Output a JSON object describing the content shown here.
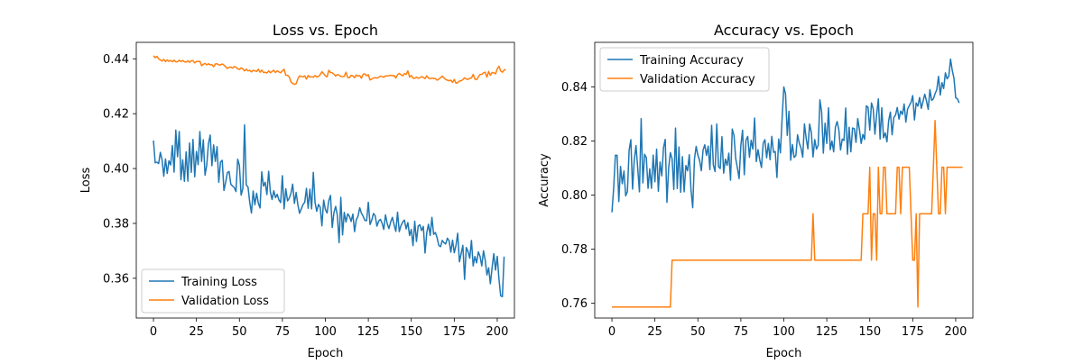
{
  "chart_data": [
    {
      "type": "line",
      "title": "Loss vs. Epoch",
      "xlabel": "Epoch",
      "ylabel": "Loss",
      "xlim": [
        -10,
        210
      ],
      "ylim": [
        0.3455,
        0.446
      ],
      "xticks": [
        0,
        25,
        50,
        75,
        100,
        125,
        150,
        175,
        200
      ],
      "yticks": [
        0.36,
        0.38,
        0.4,
        0.42,
        0.44
      ],
      "ytick_labels": [
        "0.36",
        "0.38",
        "0.40",
        "0.42",
        "0.44"
      ],
      "legend_position": "lower-left",
      "grid": false,
      "series": [
        {
          "name": "Training Loss",
          "color": "#1f77b4",
          "values": [
            0.4102,
            0.4021,
            0.4023,
            0.4018,
            0.4059,
            0.4032,
            0.3972,
            0.4035,
            0.3982,
            0.4028,
            0.4013,
            0.4084,
            0.3987,
            0.414,
            0.4043,
            0.4135,
            0.3959,
            0.4032,
            0.3953,
            0.4061,
            0.3954,
            0.4093,
            0.3986,
            0.4106,
            0.397,
            0.4062,
            0.4014,
            0.4135,
            0.4026,
            0.4105,
            0.3976,
            0.4013,
            0.4091,
            0.4122,
            0.401,
            0.4086,
            0.4026,
            0.408,
            0.395,
            0.4024,
            0.403,
            0.392,
            0.395,
            0.3985,
            0.3989,
            0.3943,
            0.3936,
            0.3931,
            0.3916,
            0.4034,
            0.4011,
            0.3903,
            0.3927,
            0.4159,
            0.394,
            0.3933,
            0.3877,
            0.3838,
            0.3918,
            0.3868,
            0.391,
            0.3874,
            0.3856,
            0.3988,
            0.3936,
            0.395,
            0.3905,
            0.399,
            0.3915,
            0.3887,
            0.3919,
            0.3894,
            0.3906,
            0.3885,
            0.3876,
            0.3974,
            0.3853,
            0.3926,
            0.3882,
            0.3892,
            0.391,
            0.3943,
            0.3873,
            0.3913,
            0.3868,
            0.3837,
            0.3853,
            0.3869,
            0.3877,
            0.3928,
            0.3855,
            0.3925,
            0.3853,
            0.3986,
            0.3876,
            0.3844,
            0.3869,
            0.3859,
            0.3791,
            0.3885,
            0.3851,
            0.3838,
            0.3883,
            0.3902,
            0.3785,
            0.384,
            0.3862,
            0.3829,
            0.373,
            0.3895,
            0.3758,
            0.384,
            0.3805,
            0.3835,
            0.3826,
            0.3807,
            0.3834,
            0.377,
            0.3813,
            0.3826,
            0.3857,
            0.3837,
            0.3826,
            0.3811,
            0.381,
            0.3877,
            0.3796,
            0.3812,
            0.3836,
            0.3828,
            0.379,
            0.3808,
            0.3815,
            0.3801,
            0.3778,
            0.3831,
            0.3799,
            0.3781,
            0.3805,
            0.3822,
            0.3795,
            0.3771,
            0.3841,
            0.377,
            0.3792,
            0.3805,
            0.3812,
            0.378,
            0.3803,
            0.3756,
            0.3778,
            0.3719,
            0.3808,
            0.3734,
            0.379,
            0.3795,
            0.3774,
            0.3789,
            0.3692,
            0.3766,
            0.3797,
            0.3756,
            0.3822,
            0.376,
            0.3767,
            0.3748,
            0.372,
            0.3715,
            0.3738,
            0.373,
            0.3725,
            0.3746,
            0.3737,
            0.3695,
            0.3739,
            0.3693,
            0.372,
            0.3764,
            0.366,
            0.369,
            0.372,
            0.3596,
            0.3712,
            0.3698,
            0.3673,
            0.3738,
            0.3645,
            0.3679,
            0.3656,
            0.3696,
            0.368,
            0.3645,
            0.37,
            0.3666,
            0.3612,
            0.3638,
            0.358,
            0.3638,
            0.369,
            0.363,
            0.368,
            0.3598,
            0.3536,
            0.3533,
            0.3679
          ]
        },
        {
          "name": "Validation Loss",
          "color": "#ff7f0e",
          "values": [
            0.4411,
            0.4404,
            0.4409,
            0.44,
            0.4396,
            0.4392,
            0.4398,
            0.439,
            0.4396,
            0.4391,
            0.4394,
            0.4389,
            0.4395,
            0.4389,
            0.4389,
            0.4395,
            0.439,
            0.4394,
            0.4389,
            0.4388,
            0.4393,
            0.4387,
            0.4393,
            0.4393,
            0.4385,
            0.439,
            0.439,
            0.4391,
            0.4375,
            0.438,
            0.4383,
            0.4378,
            0.4382,
            0.4378,
            0.4379,
            0.4371,
            0.4381,
            0.4382,
            0.4378,
            0.4378,
            0.4381,
            0.4377,
            0.4371,
            0.4365,
            0.4369,
            0.437,
            0.4366,
            0.4372,
            0.4369,
            0.4364,
            0.4361,
            0.4367,
            0.4363,
            0.4356,
            0.4362,
            0.4356,
            0.4358,
            0.4352,
            0.4358,
            0.4356,
            0.4354,
            0.4362,
            0.4351,
            0.4359,
            0.435,
            0.4351,
            0.4348,
            0.4356,
            0.4349,
            0.4354,
            0.4358,
            0.435,
            0.4356,
            0.4352,
            0.4349,
            0.4356,
            0.4362,
            0.434,
            0.434,
            0.4334,
            0.4316,
            0.431,
            0.4307,
            0.4309,
            0.4327,
            0.4338,
            0.4335,
            0.4334,
            0.4338,
            0.4326,
            0.4339,
            0.4333,
            0.4335,
            0.4333,
            0.4339,
            0.4334,
            0.4336,
            0.4342,
            0.4353,
            0.4346,
            0.4338,
            0.4334,
            0.4358,
            0.435,
            0.4349,
            0.4344,
            0.4337,
            0.4343,
            0.434,
            0.4336,
            0.4335,
            0.4336,
            0.4351,
            0.4332,
            0.4331,
            0.434,
            0.4338,
            0.4331,
            0.4341,
            0.4337,
            0.4339,
            0.4329,
            0.4344,
            0.4345,
            0.4338,
            0.4342,
            0.4323,
            0.4326,
            0.433,
            0.4331,
            0.433,
            0.4332,
            0.4337,
            0.4335,
            0.4333,
            0.4338,
            0.4337,
            0.4339,
            0.434,
            0.4338,
            0.4339,
            0.433,
            0.4342,
            0.4347,
            0.4342,
            0.4338,
            0.4346,
            0.4343,
            0.4356,
            0.4334,
            0.4339,
            0.433,
            0.4329,
            0.4333,
            0.4329,
            0.4331,
            0.4335,
            0.4332,
            0.4328,
            0.4338,
            0.433,
            0.4327,
            0.433,
            0.4328,
            0.4328,
            0.4322,
            0.4326,
            0.4331,
            0.4337,
            0.4331,
            0.4325,
            0.4322,
            0.432,
            0.4322,
            0.4314,
            0.4325,
            0.4311,
            0.4313,
            0.4319,
            0.432,
            0.4324,
            0.4331,
            0.4326,
            0.4325,
            0.4329,
            0.433,
            0.4343,
            0.4326,
            0.4324,
            0.4334,
            0.4343,
            0.4343,
            0.4349,
            0.4351,
            0.4333,
            0.4354,
            0.434,
            0.435,
            0.4349,
            0.4345,
            0.4363,
            0.4373,
            0.4356,
            0.4351,
            0.4359,
            0.4361
          ]
        }
      ]
    },
    {
      "type": "line",
      "title": "Accuracy vs. Epoch",
      "xlabel": "Epoch",
      "ylabel": "Accuracy",
      "xlim": [
        -10,
        210
      ],
      "ylim": [
        0.7545,
        0.8565
      ],
      "xticks": [
        0,
        25,
        50,
        75,
        100,
        125,
        150,
        175,
        200
      ],
      "yticks": [
        0.76,
        0.78,
        0.8,
        0.82,
        0.84
      ],
      "ytick_labels": [
        "0.76",
        "0.78",
        "0.80",
        "0.82",
        "0.84"
      ],
      "legend_position": "top-left",
      "grid": false,
      "series": [
        {
          "name": "Training Accuracy",
          "color": "#1f77b4",
          "values": [
            0.7936,
            0.8025,
            0.8147,
            0.8147,
            0.7976,
            0.8106,
            0.8042,
            0.8089,
            0.7997,
            0.8013,
            0.8166,
            0.8205,
            0.8022,
            0.813,
            0.8183,
            0.81,
            0.8012,
            0.8283,
            0.8045,
            0.8151,
            0.8139,
            0.8025,
            0.8097,
            0.8025,
            0.8148,
            0.8049,
            0.817,
            0.8014,
            0.8122,
            0.8071,
            0.8175,
            0.8206,
            0.7973,
            0.81,
            0.8157,
            0.8134,
            0.8021,
            0.8248,
            0.8024,
            0.8178,
            0.801,
            0.8142,
            0.8012,
            0.8109,
            0.809,
            0.8149,
            0.8019,
            0.7953,
            0.8133,
            0.818,
            0.8148,
            0.8128,
            0.809,
            0.8166,
            0.8186,
            0.8147,
            0.8181,
            0.8094,
            0.8258,
            0.8111,
            0.8087,
            0.8263,
            0.8105,
            0.8098,
            0.8216,
            0.8081,
            0.8133,
            0.811,
            0.8155,
            0.8055,
            0.8244,
            0.8221,
            0.8136,
            0.81,
            0.8061,
            0.8184,
            0.824,
            0.8075,
            0.8204,
            0.8217,
            0.814,
            0.8203,
            0.817,
            0.8285,
            0.8124,
            0.8168,
            0.813,
            0.8102,
            0.8192,
            0.8205,
            0.8138,
            0.8191,
            0.8131,
            0.8217,
            0.8158,
            0.8161,
            0.8065,
            0.8207,
            0.8156,
            0.8283,
            0.84,
            0.8374,
            0.8221,
            0.831,
            0.8129,
            0.8187,
            0.8139,
            0.8146,
            0.8223,
            0.8192,
            0.8174,
            0.814,
            0.8263,
            0.821,
            0.8171,
            0.8263,
            0.8232,
            0.8141,
            0.8205,
            0.817,
            0.8184,
            0.8352,
            0.8307,
            0.8155,
            0.8266,
            0.8191,
            0.8323,
            0.8168,
            0.82,
            0.816,
            0.8251,
            0.8272,
            0.8242,
            0.8167,
            0.8207,
            0.8202,
            0.8322,
            0.8151,
            0.8251,
            0.816,
            0.8248,
            0.8246,
            0.8195,
            0.8283,
            0.8242,
            0.8191,
            0.8224,
            0.8206,
            0.833,
            0.8325,
            0.824,
            0.8341,
            0.8319,
            0.8225,
            0.8298,
            0.8356,
            0.8207,
            0.8323,
            0.8212,
            0.823,
            0.8197,
            0.8276,
            0.8307,
            0.8223,
            0.8287,
            0.8296,
            0.8324,
            0.8281,
            0.8311,
            0.8298,
            0.8337,
            0.827,
            0.8318,
            0.8331,
            0.8343,
            0.8368,
            0.8278,
            0.8341,
            0.8329,
            0.8361,
            0.8321,
            0.8347,
            0.8373,
            0.8348,
            0.8317,
            0.839,
            0.835,
            0.8356,
            0.8375,
            0.839,
            0.8439,
            0.837,
            0.8416,
            0.8394,
            0.8452,
            0.843,
            0.844,
            0.8503,
            0.8461,
            0.8432,
            0.836,
            0.8356,
            0.8341
          ]
        },
        {
          "name": "Validation Accuracy",
          "color": "#ff7f0e",
          "values": [
            0.7586,
            0.7586,
            0.7586,
            0.7586,
            0.7586,
            0.7586,
            0.7586,
            0.7586,
            0.7586,
            0.7586,
            0.7586,
            0.7586,
            0.7586,
            0.7586,
            0.7586,
            0.7586,
            0.7586,
            0.7586,
            0.7586,
            0.7586,
            0.7586,
            0.7586,
            0.7586,
            0.7586,
            0.7586,
            0.7586,
            0.7586,
            0.7586,
            0.7586,
            0.7586,
            0.7586,
            0.7586,
            0.7586,
            0.7586,
            0.7586,
            0.7759,
            0.7759,
            0.7759,
            0.7759,
            0.7759,
            0.7759,
            0.7759,
            0.7759,
            0.7759,
            0.7759,
            0.7759,
            0.7759,
            0.7759,
            0.7759,
            0.7759,
            0.7759,
            0.7759,
            0.7759,
            0.7759,
            0.7759,
            0.7759,
            0.7759,
            0.7759,
            0.7759,
            0.7759,
            0.7759,
            0.7759,
            0.7759,
            0.7759,
            0.7759,
            0.7759,
            0.7759,
            0.7759,
            0.7759,
            0.7759,
            0.7759,
            0.7759,
            0.7759,
            0.7759,
            0.7759,
            0.7759,
            0.7759,
            0.7759,
            0.7759,
            0.7759,
            0.7759,
            0.7759,
            0.7759,
            0.7759,
            0.7759,
            0.7759,
            0.7759,
            0.7759,
            0.7759,
            0.7759,
            0.7759,
            0.7759,
            0.7759,
            0.7759,
            0.7759,
            0.7759,
            0.7759,
            0.7759,
            0.7759,
            0.7759,
            0.7759,
            0.7759,
            0.7759,
            0.7759,
            0.7759,
            0.7759,
            0.7759,
            0.7759,
            0.7759,
            0.7759,
            0.7759,
            0.7759,
            0.7759,
            0.7759,
            0.7759,
            0.7759,
            0.7759,
            0.7931,
            0.7759,
            0.7759,
            0.7759,
            0.7759,
            0.7759,
            0.7759,
            0.7759,
            0.7759,
            0.7759,
            0.7759,
            0.7759,
            0.7759,
            0.7759,
            0.7759,
            0.7759,
            0.7759,
            0.7759,
            0.7759,
            0.7759,
            0.7759,
            0.7759,
            0.7759,
            0.7759,
            0.7759,
            0.7759,
            0.7759,
            0.7759,
            0.7759,
            0.7931,
            0.7931,
            0.7931,
            0.7931,
            0.8103,
            0.7759,
            0.7931,
            0.7931,
            0.7759,
            0.8103,
            0.7931,
            0.7931,
            0.8103,
            0.8103,
            0.7931,
            0.7931,
            0.7931,
            0.7931,
            0.7931,
            0.7931,
            0.8103,
            0.8103,
            0.7931,
            0.8103,
            0.8103,
            0.8103,
            0.8103,
            0.8103,
            0.7931,
            0.7759,
            0.7759,
            0.7931,
            0.7586,
            0.7931,
            0.7931,
            0.7931,
            0.7931,
            0.7931,
            0.7931,
            0.7931,
            0.7931,
            0.8103,
            0.8276,
            0.8103,
            0.7931,
            0.7931,
            0.8103,
            0.8103,
            0.7931,
            0.8103,
            0.8103,
            0.8103,
            0.8103,
            0.8103,
            0.8103,
            0.8103,
            0.8103,
            0.8103,
            0.8103
          ]
        }
      ]
    }
  ]
}
